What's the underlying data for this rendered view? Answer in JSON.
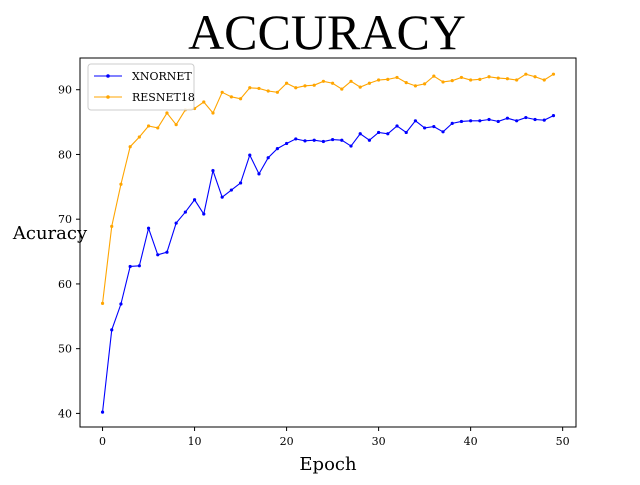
{
  "chart_data": {
    "type": "line",
    "title": "ACCURACY",
    "xlabel": "Epoch",
    "ylabel": "Acuracy",
    "xlim": [
      -2.45,
      51.45
    ],
    "ylim": [
      37.9,
      94.9
    ],
    "x_ticks": [
      0,
      10,
      20,
      30,
      40,
      50
    ],
    "y_ticks": [
      40,
      50,
      60,
      70,
      80,
      90
    ],
    "grid": false,
    "legend_position": "top-left",
    "x": [
      0,
      1,
      2,
      3,
      4,
      5,
      6,
      7,
      8,
      9,
      10,
      11,
      12,
      13,
      14,
      15,
      16,
      17,
      18,
      19,
      20,
      21,
      22,
      23,
      24,
      25,
      26,
      27,
      28,
      29,
      30,
      31,
      32,
      33,
      34,
      35,
      36,
      37,
      38,
      39,
      40,
      41,
      42,
      43,
      44,
      45,
      46,
      47,
      48,
      49
    ],
    "series": [
      {
        "name": "XNORNET",
        "color": "#0000ff",
        "values": [
          40.2,
          52.9,
          56.9,
          62.7,
          62.8,
          68.6,
          64.5,
          64.9,
          69.4,
          71.1,
          73.0,
          70.8,
          77.5,
          73.4,
          74.5,
          75.6,
          79.9,
          77.0,
          79.5,
          80.9,
          81.7,
          82.4,
          82.1,
          82.2,
          82.0,
          82.3,
          82.2,
          81.3,
          83.2,
          82.2,
          83.4,
          83.2,
          84.4,
          83.4,
          85.2,
          84.1,
          84.3,
          83.5,
          84.8,
          85.1,
          85.2,
          85.2,
          85.4,
          85.1,
          85.6,
          85.2,
          85.7,
          85.4,
          85.3,
          86.0
        ]
      },
      {
        "name": "RESNET18",
        "color": "#ffa500",
        "values": [
          57.0,
          68.9,
          75.4,
          81.2,
          82.7,
          84.4,
          84.1,
          86.4,
          84.6,
          86.9,
          87.1,
          88.1,
          86.4,
          89.6,
          88.9,
          88.6,
          90.3,
          90.2,
          89.8,
          89.6,
          91.0,
          90.3,
          90.6,
          90.7,
          91.3,
          91.0,
          90.1,
          91.3,
          90.4,
          91.0,
          91.5,
          91.6,
          91.9,
          91.1,
          90.6,
          90.9,
          92.1,
          91.2,
          91.4,
          91.9,
          91.5,
          91.6,
          92.0,
          91.8,
          91.7,
          91.5,
          92.4,
          92.0,
          91.5,
          92.4
        ]
      }
    ]
  }
}
